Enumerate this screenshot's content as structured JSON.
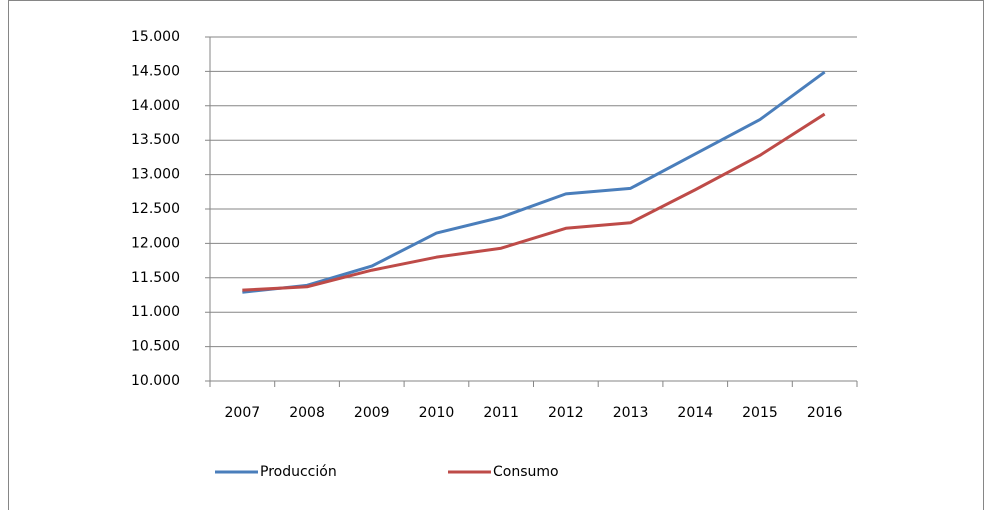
{
  "chart_data": {
    "type": "line",
    "categories": [
      "2007",
      "2008",
      "2009",
      "2010",
      "2011",
      "2012",
      "2013",
      "2014",
      "2015",
      "2016"
    ],
    "series": [
      {
        "name": "Producción",
        "color": "#4a7ebb",
        "values": [
          11290,
          11390,
          11670,
          12150,
          12380,
          12720,
          12800,
          13300,
          13800,
          14490
        ]
      },
      {
        "name": "Consumo",
        "color": "#be4b48",
        "values": [
          11320,
          11370,
          11610,
          11800,
          11930,
          12220,
          12300,
          12780,
          13280,
          13880
        ]
      }
    ],
    "ylim": [
      10000,
      15000
    ],
    "yticks": [
      {
        "value": 10000,
        "label": "10.000"
      },
      {
        "value": 10500,
        "label": "10.500"
      },
      {
        "value": 11000,
        "label": "11.000"
      },
      {
        "value": 11500,
        "label": "11.500"
      },
      {
        "value": 12000,
        "label": "12.000"
      },
      {
        "value": 12500,
        "label": "12.500"
      },
      {
        "value": 13000,
        "label": "13.000"
      },
      {
        "value": 13500,
        "label": "13.500"
      },
      {
        "value": 14000,
        "label": "14.000"
      },
      {
        "value": 14500,
        "label": "14.500"
      },
      {
        "value": 15000,
        "label": "15.000"
      }
    ],
    "grid": true,
    "legend": "bottom"
  }
}
